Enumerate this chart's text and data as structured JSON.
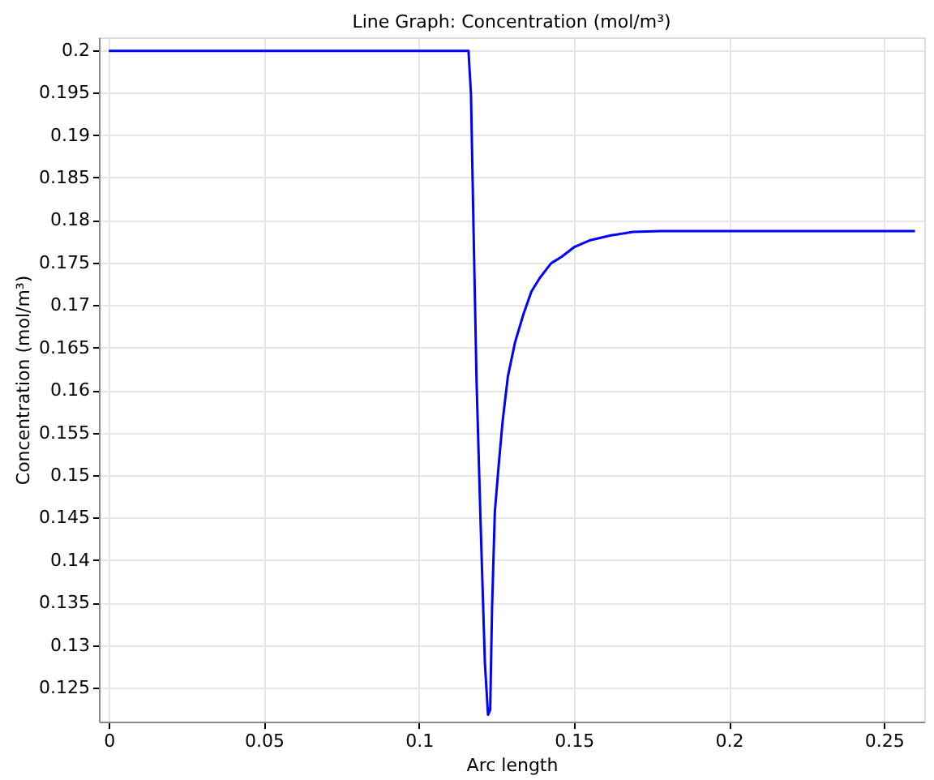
{
  "chart_data": {
    "type": "line",
    "title": "Line Graph: Concentration (mol/m³)",
    "xlabel": "Arc length",
    "ylabel": "Concentration (mol/m³)",
    "series": [
      {
        "color": "#0000ff",
        "x": [
          0,
          0.05,
          0.1,
          0.116,
          0.1168,
          0.1177,
          0.1186,
          0.1199,
          0.1213,
          0.1223,
          0.123,
          0.1236,
          0.1245,
          0.1257,
          0.127,
          0.1287,
          0.131,
          0.1337,
          0.1363,
          0.139,
          0.1426,
          0.1461,
          0.15,
          0.155,
          0.162,
          0.1691,
          0.178,
          0.2,
          0.23,
          0.26
        ],
        "values": [
          0.1999,
          0.1999,
          0.1999,
          0.1999,
          0.1948,
          0.1776,
          0.161,
          0.1444,
          0.1278,
          0.1218,
          0.1224,
          0.1344,
          0.1457,
          0.151,
          0.1563,
          0.1616,
          0.1656,
          0.1689,
          0.1716,
          0.1732,
          0.1749,
          0.1757,
          0.1768,
          0.1776,
          0.1782,
          0.1786,
          0.1787,
          0.1787,
          0.1787,
          0.1787
        ]
      }
    ],
    "xlim": [
      -0.0032,
      0.263
    ],
    "xticks": [
      0,
      0.05,
      0.1,
      0.15,
      0.2,
      0.25
    ],
    "ylim": [
      0.121,
      0.2015
    ],
    "yticks": [
      0.125,
      0.13,
      0.135,
      0.14,
      0.145,
      0.15,
      0.155,
      0.16,
      0.165,
      0.17,
      0.175,
      0.18,
      0.185,
      0.19,
      0.195,
      0.2
    ],
    "grid": true,
    "marker": "none",
    "line_style": "solid"
  }
}
